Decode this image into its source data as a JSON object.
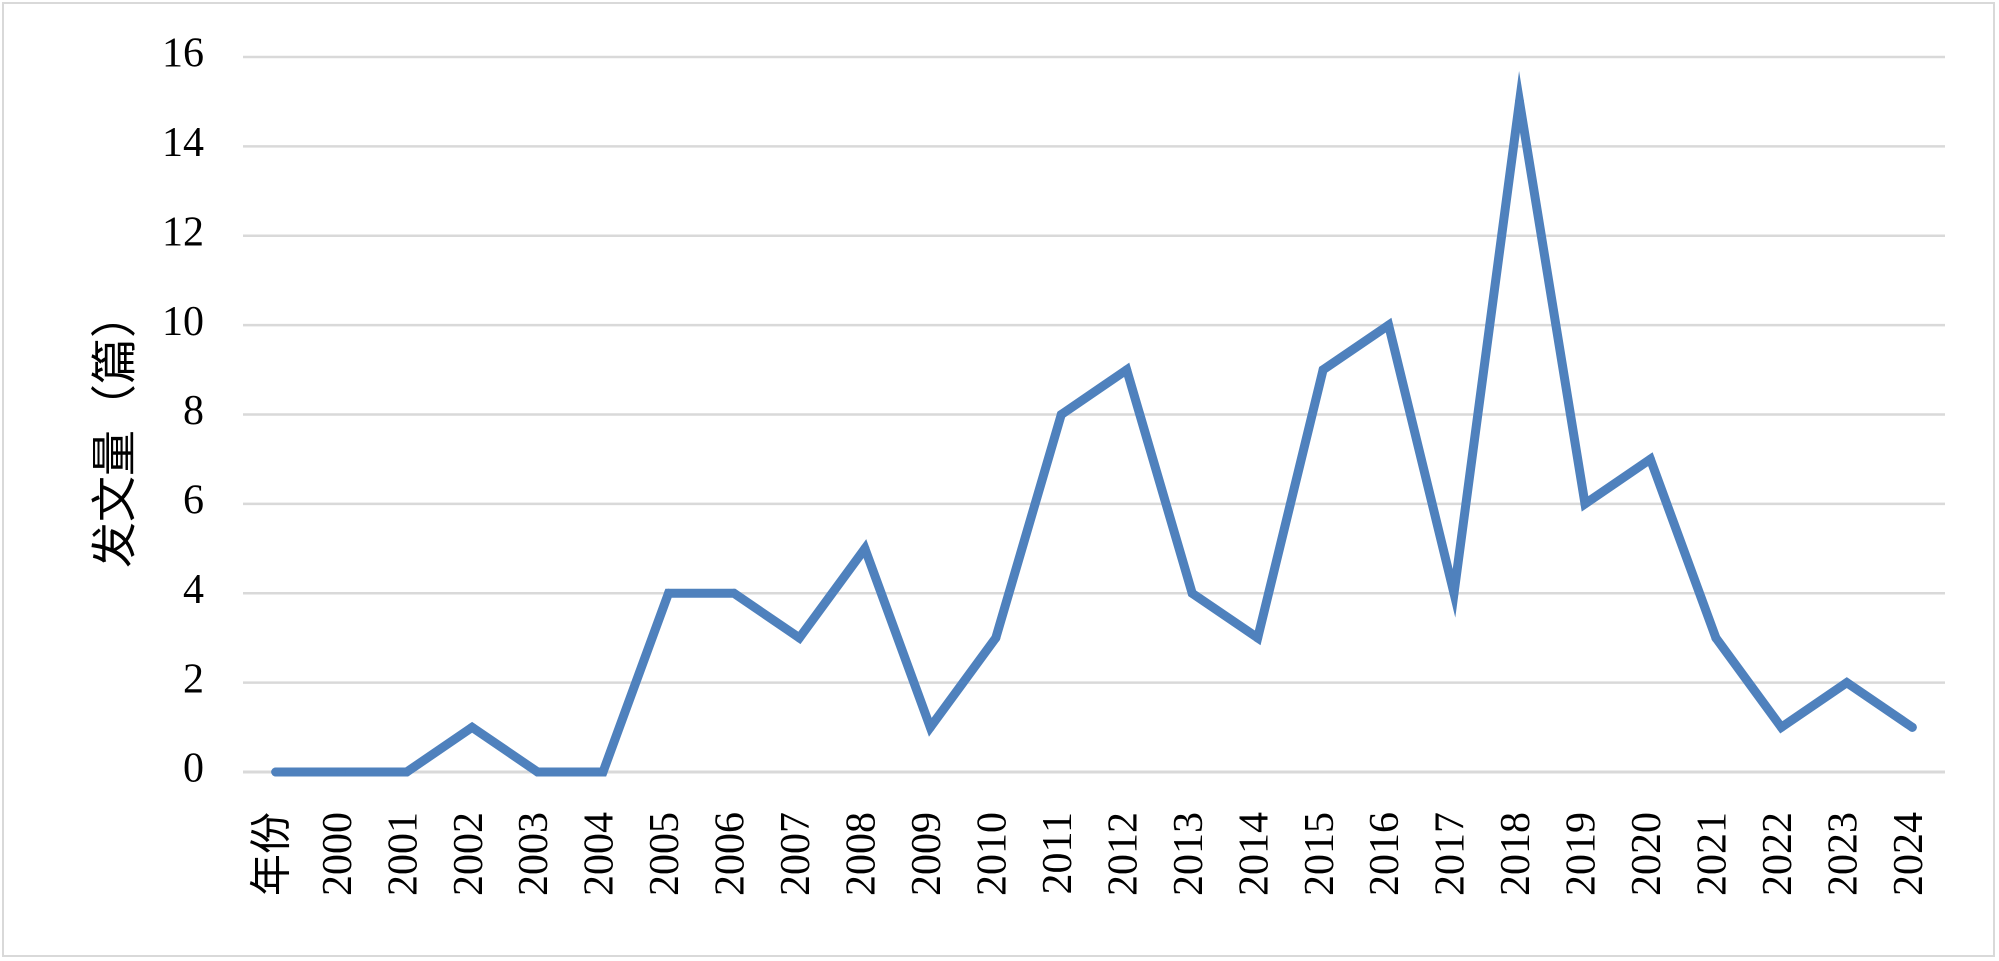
{
  "chart_data": {
    "type": "line",
    "title": "",
    "xlabel": "年份",
    "ylabel": "发文量（篇）",
    "categories": [
      "年份",
      "2000",
      "2001",
      "2002",
      "2003",
      "2004",
      "2005",
      "2006",
      "2007",
      "2008",
      "2009",
      "2010",
      "2011",
      "2012",
      "2013",
      "2014",
      "2015",
      "2016",
      "2017",
      "2018",
      "2019",
      "2020",
      "2021",
      "2022",
      "2023",
      "2024"
    ],
    "series": [
      {
        "values": [
          0,
          0,
          0,
          1,
          0,
          0,
          4,
          4,
          3,
          5,
          1,
          3,
          8,
          9,
          4,
          3,
          9,
          10,
          4,
          15,
          6,
          7,
          3,
          1,
          2,
          1
        ]
      }
    ],
    "ylim": [
      0,
      16
    ],
    "yticks": [
      "0",
      "2",
      "4",
      "6",
      "8",
      "10",
      "12",
      "14",
      "16"
    ],
    "grid": true,
    "legend": "none",
    "colors": {
      "line": "#4F81BD",
      "grid": "#d9d9d9",
      "axis": "#d9d9d9",
      "frame": "#d9d9d9"
    }
  }
}
